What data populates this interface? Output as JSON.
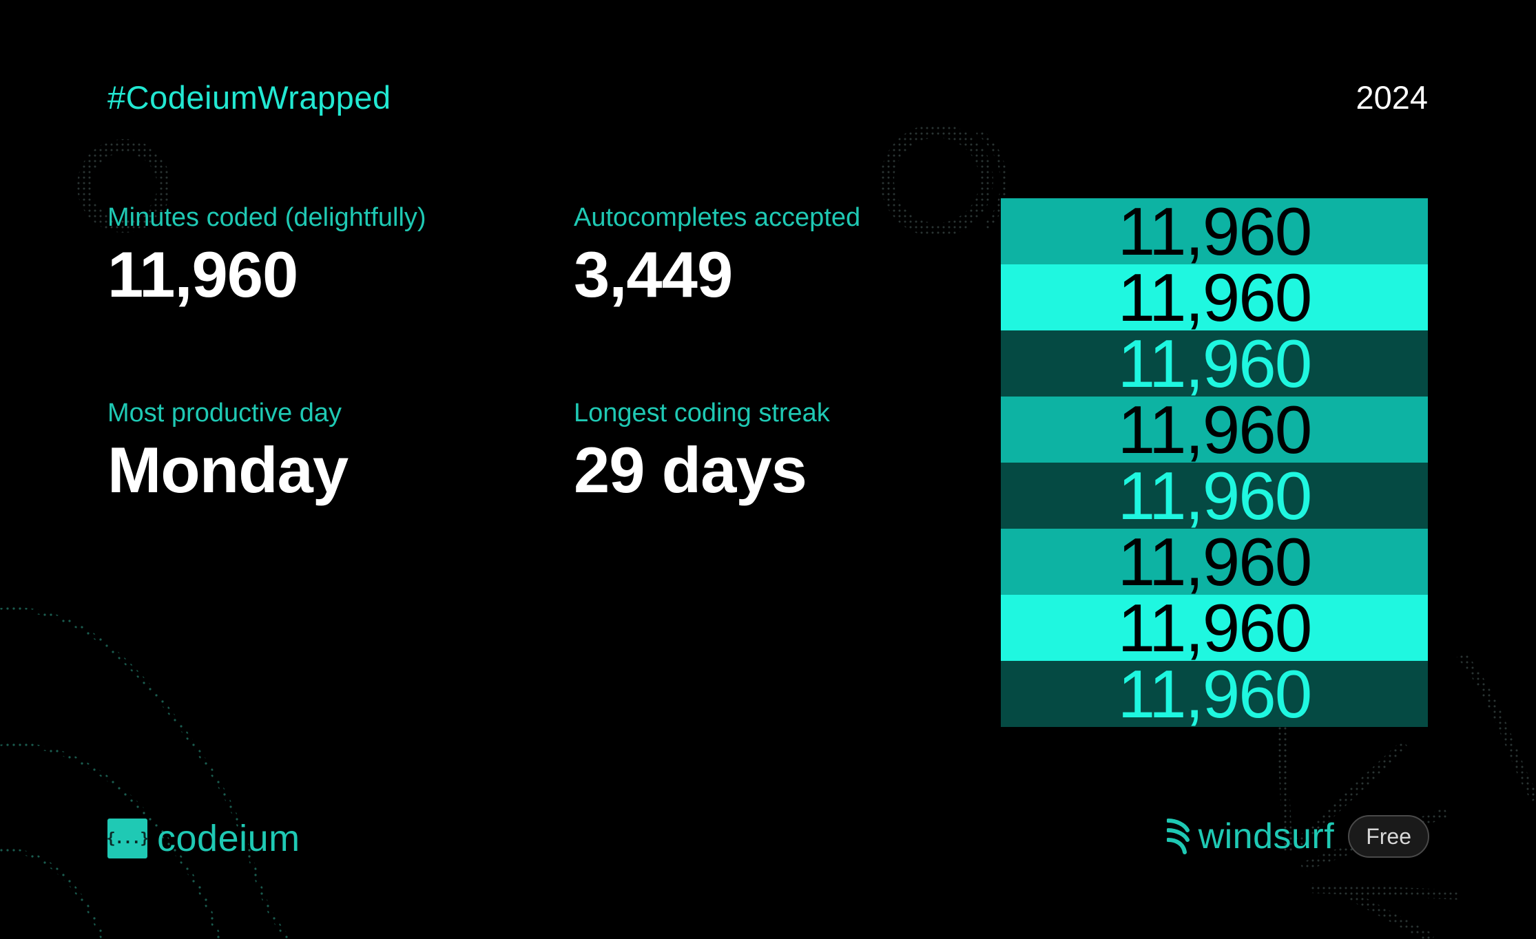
{
  "header": {
    "hashtag": "#CodeiumWrapped",
    "year": "2024"
  },
  "stats": [
    {
      "label": "Minutes coded (delightfully)",
      "value": "11,960"
    },
    {
      "label": "Autocompletes accepted",
      "value": "3,449"
    },
    {
      "label": "Most productive day",
      "value": "Monday"
    },
    {
      "label": "Longest coding streak",
      "value": "29 days"
    }
  ],
  "stack": {
    "rows": [
      {
        "text": "11,960",
        "tone": "mid"
      },
      {
        "text": "11,960",
        "tone": "light"
      },
      {
        "text": "11,960",
        "tone": "dark"
      },
      {
        "text": "11,960",
        "tone": "mid"
      },
      {
        "text": "11,960",
        "tone": "dark"
      },
      {
        "text": "11,960",
        "tone": "mid"
      },
      {
        "text": "11,960",
        "tone": "light"
      },
      {
        "text": "11,960",
        "tone": "dark"
      }
    ]
  },
  "footer": {
    "left_logo_glyph": "{...}",
    "left_brand": "codeium",
    "right_brand": "windsurf",
    "plan_badge": "Free"
  },
  "colors": {
    "background": "#000000",
    "accent": "#22e8d2",
    "label": "#1fc9b4",
    "mid": "#0db3a3",
    "light": "#1ff7e0",
    "dark": "#054a43"
  }
}
